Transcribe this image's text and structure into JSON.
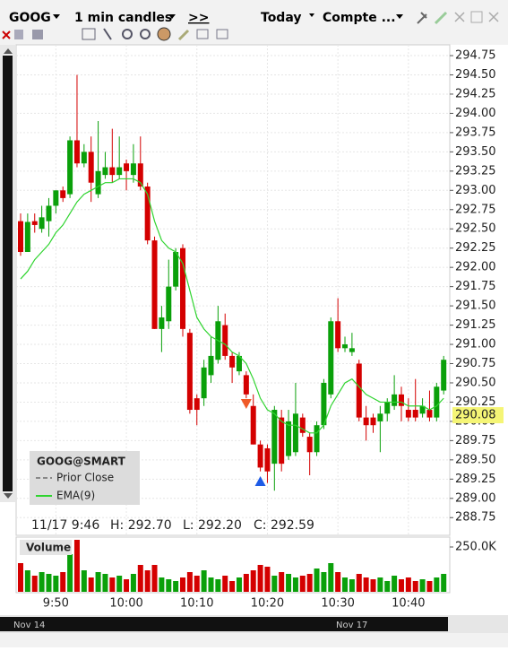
{
  "toolbar": {
    "symbol": "GOOG",
    "interval": "1 min candles",
    "nav": ">>",
    "period": "Today",
    "account": "Compte ..."
  },
  "legend": {
    "title": "GOOG@SMART",
    "prior_close": "Prior Close",
    "ema": "EMA(9)"
  },
  "info": {
    "datetime": "11/17 9:46",
    "high": "H: 292.70",
    "low": "L: 292.20",
    "close": "C: 292.59"
  },
  "scroller": {
    "left": "Nov 14",
    "right": "Nov 17"
  },
  "chart_data": {
    "type": "candlestick",
    "categories": [
      null,
      null,
      null,
      null,
      null,
      "9:50",
      null,
      null,
      null,
      null,
      null,
      null,
      null,
      null,
      null,
      "10:00",
      null,
      null,
      null,
      null,
      null,
      null,
      null,
      null,
      null,
      "10:10",
      null,
      null,
      null,
      null,
      null,
      null,
      null,
      null,
      null,
      "10:20",
      null,
      null,
      null,
      null,
      null,
      null,
      null,
      null,
      null,
      "10:30",
      null,
      null,
      null,
      null,
      null,
      null,
      null,
      null,
      null,
      "10:40",
      null,
      null,
      null,
      null,
      null
    ],
    "open": [
      292.6,
      292.2,
      292.6,
      292.5,
      292.6,
      292.8,
      293.0,
      292.95,
      293.65,
      293.35,
      293.5,
      292.95,
      293.2,
      293.3,
      293.2,
      293.35,
      293.2,
      293.35,
      293.05,
      292.35,
      291.2,
      291.3,
      291.75,
      292.25,
      291.15,
      290.3,
      290.3,
      290.6,
      290.8,
      291.25,
      290.85,
      290.65,
      290.6,
      290.2,
      289.7,
      289.65,
      289.45,
      290.05,
      289.55,
      289.6,
      290.05,
      289.8,
      289.6,
      289.95,
      290.35,
      291.3,
      290.95,
      290.9,
      290.75,
      290.05,
      290.05,
      290.0,
      290.1,
      290.2,
      290.35,
      290.15,
      290.15,
      290.1,
      290.15,
      290.05,
      290.4
    ],
    "high": [
      292.7,
      292.7,
      292.7,
      292.8,
      292.9,
      293.0,
      293.05,
      293.7,
      294.5,
      293.6,
      293.7,
      293.9,
      293.5,
      293.8,
      293.7,
      293.4,
      293.6,
      293.7,
      293.1,
      292.4,
      291.5,
      292.1,
      292.25,
      292.3,
      291.2,
      290.35,
      290.8,
      291.1,
      291.5,
      291.4,
      290.9,
      290.9,
      290.65,
      290.35,
      289.75,
      289.7,
      290.2,
      290.15,
      290.15,
      290.5,
      290.1,
      289.85,
      290.0,
      290.55,
      291.35,
      291.6,
      291.1,
      291.15,
      290.8,
      290.2,
      290.1,
      290.2,
      290.3,
      290.6,
      290.45,
      290.3,
      290.55,
      290.3,
      290.4,
      290.5,
      290.85
    ],
    "low": [
      292.15,
      292.2,
      292.45,
      292.45,
      292.4,
      292.7,
      292.85,
      292.9,
      293.3,
      293.3,
      292.85,
      292.9,
      293.15,
      293.1,
      293.15,
      293.0,
      293.1,
      293.0,
      292.3,
      291.2,
      290.9,
      291.2,
      291.7,
      291.1,
      290.1,
      289.95,
      290.2,
      290.5,
      290.75,
      290.8,
      290.5,
      290.6,
      290.3,
      289.7,
      289.35,
      289.2,
      289.1,
      289.35,
      289.5,
      289.55,
      289.8,
      289.3,
      289.55,
      289.9,
      290.3,
      290.9,
      290.9,
      290.85,
      290.0,
      289.75,
      289.85,
      289.6,
      290.0,
      290.15,
      290.0,
      290.0,
      290.0,
      290.05,
      290.0,
      290.0,
      290.35
    ],
    "close": [
      292.2,
      292.59,
      292.55,
      292.65,
      292.8,
      293.0,
      292.9,
      293.65,
      293.35,
      293.5,
      293.1,
      293.25,
      293.3,
      293.2,
      293.3,
      293.25,
      293.35,
      293.05,
      292.35,
      291.2,
      291.35,
      291.75,
      292.2,
      291.2,
      290.15,
      290.15,
      290.7,
      290.85,
      291.3,
      290.85,
      290.7,
      290.85,
      290.35,
      289.7,
      289.4,
      289.35,
      290.15,
      289.45,
      290.0,
      290.1,
      289.85,
      289.6,
      289.95,
      290.5,
      291.3,
      290.95,
      291.0,
      290.95,
      290.05,
      289.95,
      289.95,
      290.1,
      290.25,
      290.35,
      290.2,
      290.05,
      290.05,
      290.2,
      290.05,
      290.45,
      290.8
    ],
    "up_color": "#0aa00a",
    "down_color": "#d40000",
    "ema": {
      "name": "EMA(9)",
      "color": "#2fd42f",
      "values": [
        291.85,
        291.95,
        292.1,
        292.2,
        292.3,
        292.45,
        292.55,
        292.7,
        292.85,
        292.95,
        293.0,
        293.05,
        293.1,
        293.1,
        293.15,
        293.15,
        293.15,
        293.1,
        292.95,
        292.6,
        292.35,
        292.25,
        292.2,
        292.05,
        291.7,
        291.35,
        291.2,
        291.1,
        291.05,
        291.0,
        290.9,
        290.85,
        290.75,
        290.55,
        290.3,
        290.15,
        290.1,
        290.0,
        289.95,
        289.95,
        289.9,
        289.85,
        289.85,
        289.95,
        290.2,
        290.35,
        290.5,
        290.55,
        290.45,
        290.35,
        290.3,
        290.25,
        290.25,
        290.25,
        290.25,
        290.2,
        290.2,
        290.2,
        290.15,
        290.2,
        290.3
      ]
    },
    "last_price": {
      "value": 290.08,
      "label": "290.08"
    },
    "signals": [
      {
        "side": "sell",
        "at": 32,
        "value": 290.22
      },
      {
        "side": "buy",
        "at": 34,
        "value": 289.23
      }
    ],
    "ylim": [
      288.52,
      294.89
    ],
    "yticks": [
      {
        "value": 288.75,
        "label": "288.75"
      },
      {
        "value": 289,
        "label": "289.00"
      },
      {
        "value": 289.25,
        "label": "289.25"
      },
      {
        "value": 289.5,
        "label": "289.50"
      },
      {
        "value": 289.75,
        "label": "289.75"
      },
      {
        "value": 290,
        "label": "290.00"
      },
      {
        "value": 290.25,
        "label": "290.25"
      },
      {
        "value": 290.5,
        "label": "290.50"
      },
      {
        "value": 290.75,
        "label": "290.75"
      },
      {
        "value": 291,
        "label": "291.00"
      },
      {
        "value": 291.25,
        "label": "291.25"
      },
      {
        "value": 291.5,
        "label": "291.50"
      },
      {
        "value": 291.75,
        "label": "291.75"
      },
      {
        "value": 292,
        "label": "292.00"
      },
      {
        "value": 292.25,
        "label": "292.25"
      },
      {
        "value": 292.5,
        "label": "292.50"
      },
      {
        "value": 292.75,
        "label": "292.75"
      },
      {
        "value": 293,
        "label": "293.00"
      },
      {
        "value": 293.25,
        "label": "293.25"
      },
      {
        "value": 293.5,
        "label": "293.50"
      },
      {
        "value": 293.75,
        "label": "293.75"
      },
      {
        "value": 294,
        "label": "294.00"
      },
      {
        "value": 294.25,
        "label": "294.25"
      },
      {
        "value": 294.5,
        "label": "294.50"
      },
      {
        "value": 294.75,
        "label": "294.75"
      }
    ],
    "volume": {
      "title": "Volume",
      "values": [
        160000,
        120000,
        90000,
        110000,
        100000,
        90000,
        110000,
        210000,
        290000,
        120000,
        80000,
        110000,
        100000,
        80000,
        90000,
        70000,
        100000,
        150000,
        120000,
        150000,
        80000,
        70000,
        60000,
        80000,
        110000,
        90000,
        120000,
        80000,
        70000,
        90000,
        60000,
        80000,
        100000,
        120000,
        150000,
        140000,
        90000,
        110000,
        100000,
        80000,
        90000,
        100000,
        130000,
        110000,
        160000,
        110000,
        80000,
        70000,
        100000,
        80000,
        70000,
        80000,
        60000,
        90000,
        70000,
        80000,
        60000,
        70000,
        60000,
        80000,
        100000
      ],
      "ylim": [
        0,
        300000
      ],
      "yticks": [
        {
          "value": 250000,
          "label": "250.0K"
        }
      ]
    }
  }
}
